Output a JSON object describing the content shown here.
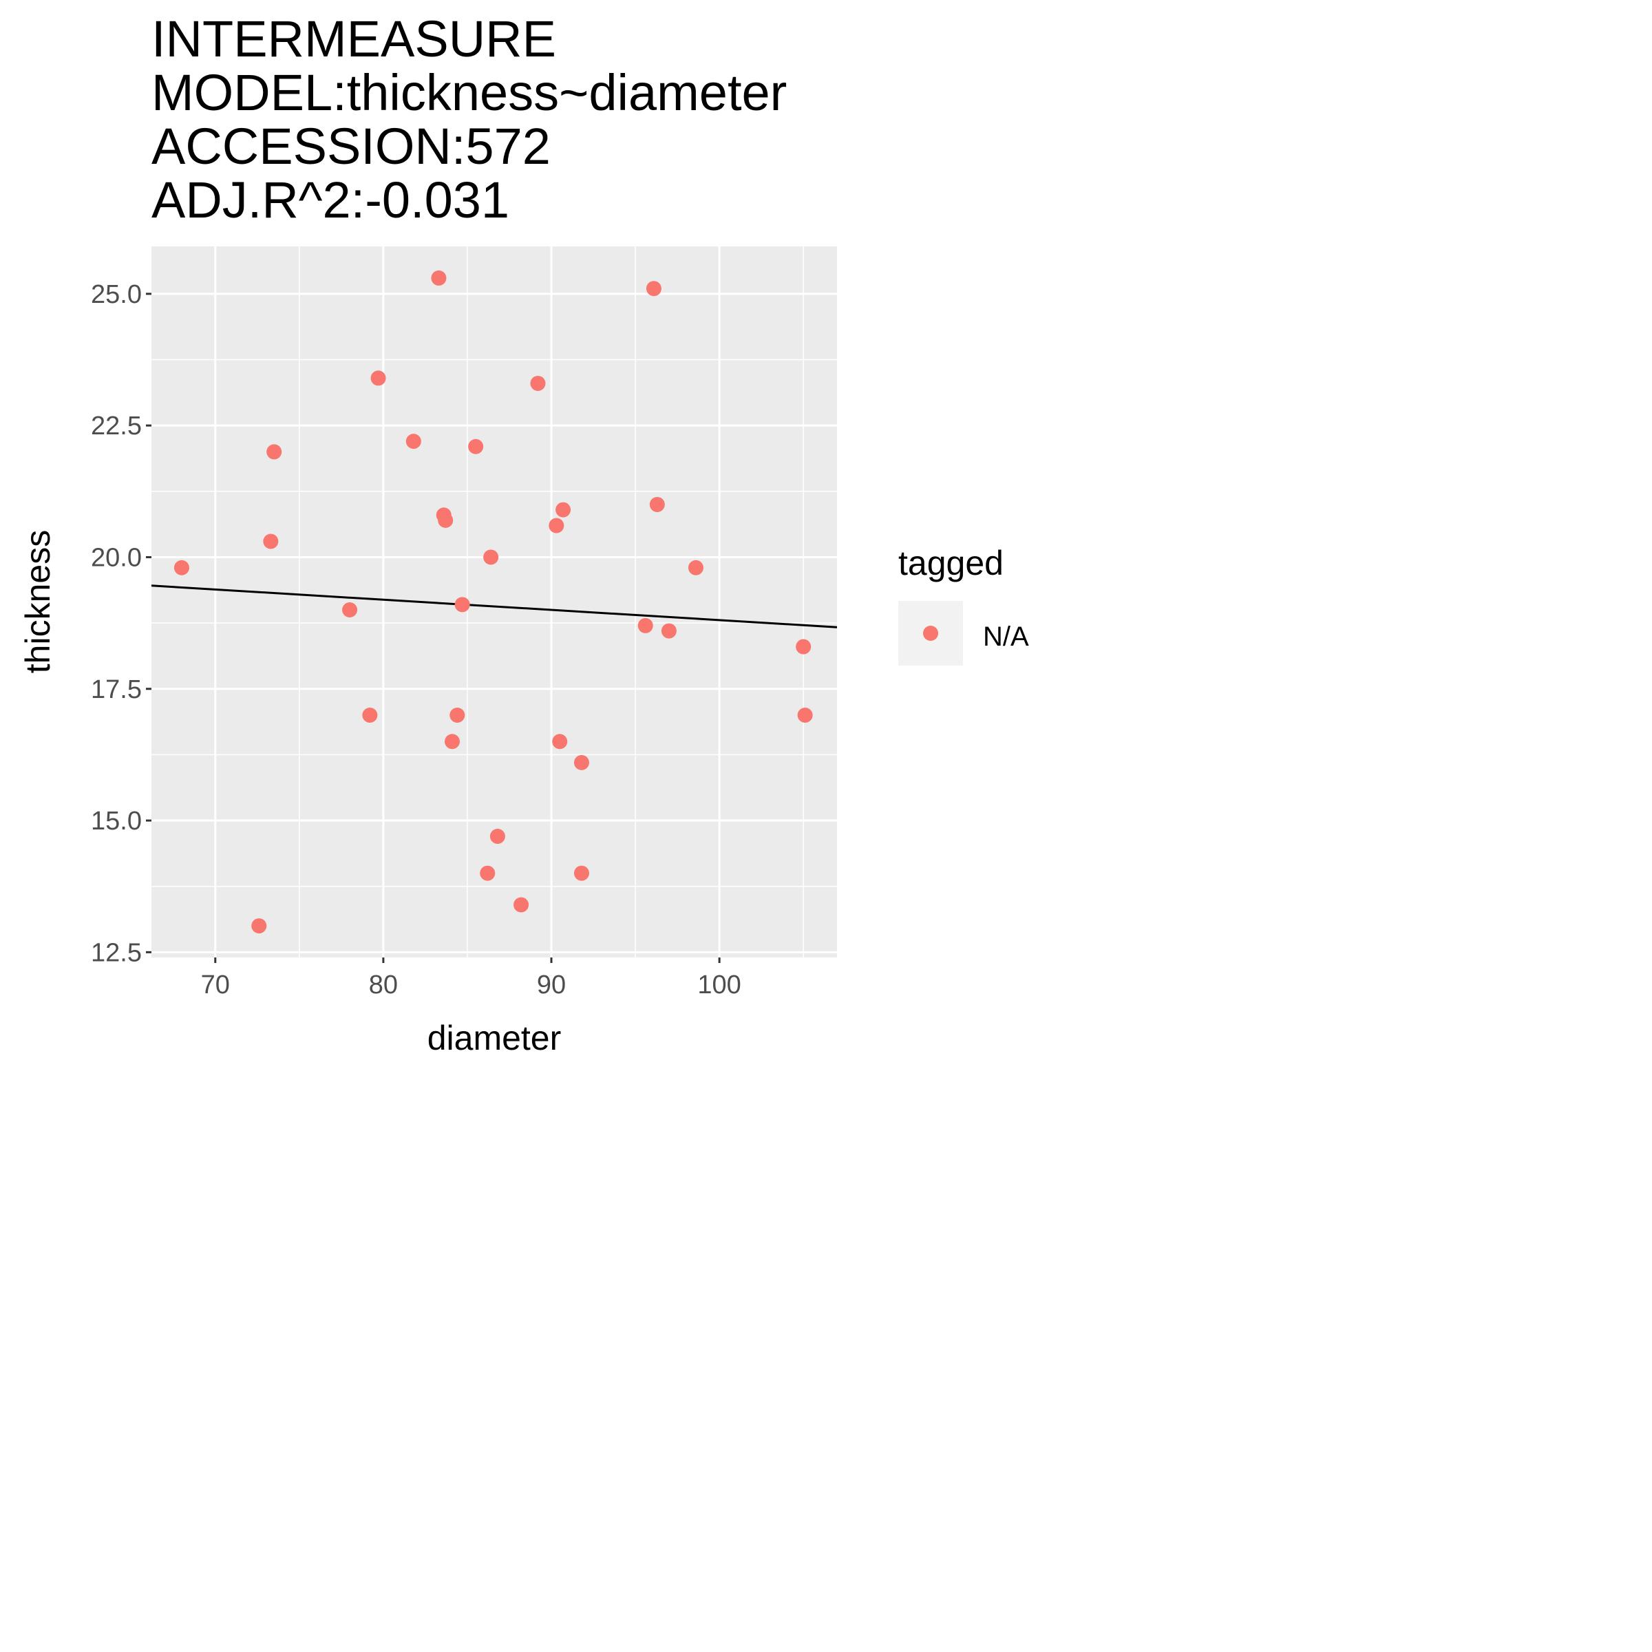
{
  "chart_data": {
    "type": "scatter",
    "title_lines": [
      "INTERMEASURE",
      "MODEL:thickness~diameter",
      "ACCESSION:572",
      "ADJ.R^2:-0.031"
    ],
    "xlabel": "diameter",
    "ylabel": "thickness",
    "xlim": [
      66.2,
      107.0
    ],
    "ylim": [
      12.4,
      25.9
    ],
    "x_ticks": [
      70,
      80,
      90,
      100
    ],
    "x_tick_labels": [
      "70",
      "80",
      "90",
      "100"
    ],
    "x_minor_ticks": [
      75,
      85,
      95,
      105
    ],
    "y_ticks": [
      12.5,
      15.0,
      17.5,
      20.0,
      22.5,
      25.0
    ],
    "y_tick_labels": [
      "12.5",
      "15.0",
      "17.5",
      "20.0",
      "22.5",
      "25.0"
    ],
    "y_minor_ticks": [
      13.75,
      16.25,
      18.75,
      21.25,
      23.75
    ],
    "grid": true,
    "legend": {
      "title": "tagged",
      "position": "right",
      "entries": [
        {
          "label": "N/A",
          "color": "#F8766D"
        }
      ]
    },
    "series": [
      {
        "name": "N/A",
        "color": "#F8766D",
        "points": [
          [
            68.0,
            19.8
          ],
          [
            72.6,
            13.0
          ],
          [
            73.3,
            20.3
          ],
          [
            73.5,
            22.0
          ],
          [
            78.0,
            19.0
          ],
          [
            79.2,
            17.0
          ],
          [
            79.7,
            23.4
          ],
          [
            81.8,
            22.2
          ],
          [
            83.3,
            25.3
          ],
          [
            83.6,
            20.8
          ],
          [
            83.7,
            20.7
          ],
          [
            84.1,
            16.5
          ],
          [
            84.4,
            17.0
          ],
          [
            84.7,
            19.1
          ],
          [
            85.5,
            22.1
          ],
          [
            86.2,
            14.0
          ],
          [
            86.4,
            20.0
          ],
          [
            86.8,
            14.7
          ],
          [
            88.2,
            13.4
          ],
          [
            89.2,
            23.3
          ],
          [
            90.3,
            20.6
          ],
          [
            90.5,
            16.5
          ],
          [
            90.7,
            20.9
          ],
          [
            91.8,
            16.1
          ],
          [
            91.8,
            14.0
          ],
          [
            95.6,
            18.7
          ],
          [
            96.1,
            25.1
          ],
          [
            96.3,
            21.0
          ],
          [
            97.0,
            18.6
          ],
          [
            98.6,
            19.8
          ],
          [
            105.0,
            18.3
          ],
          [
            105.1,
            17.0
          ]
        ]
      }
    ],
    "fit_line": {
      "color": "#000000",
      "x": [
        66.2,
        107.0
      ],
      "y": [
        19.46,
        18.67
      ]
    },
    "colors": {
      "panel_background": "#EBEBEB",
      "grid": "#FFFFFF",
      "point": "#F8766D",
      "legend_key_background": "#F2F2F2"
    }
  }
}
